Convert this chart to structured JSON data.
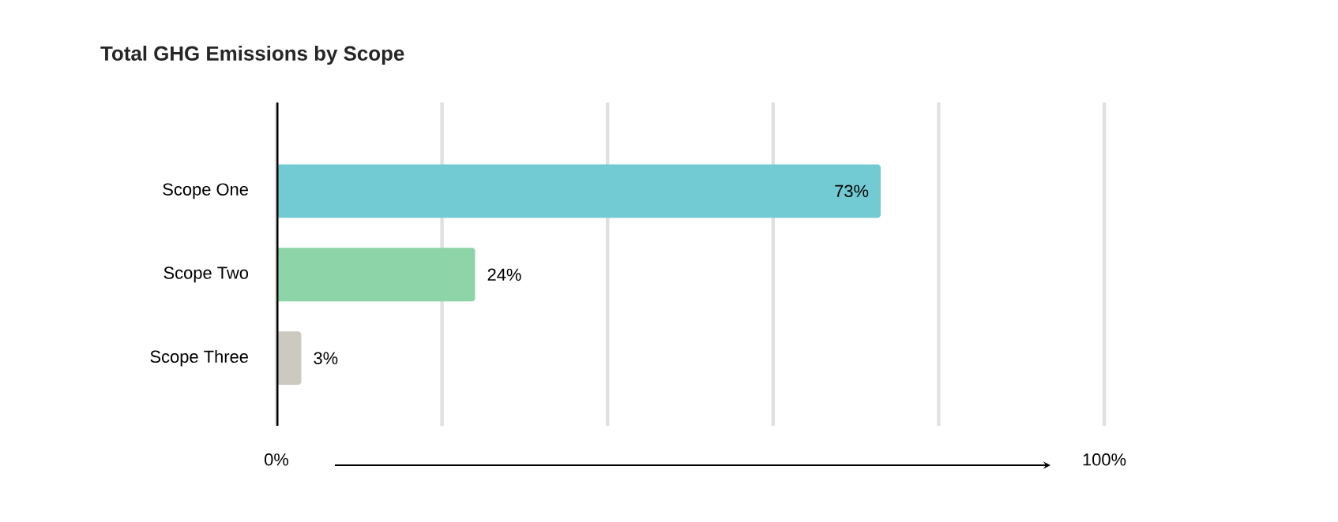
{
  "chart_data": {
    "type": "bar",
    "orientation": "horizontal",
    "title": "Total GHG Emissions by Scope",
    "categories": [
      "Scope One",
      "Scope Two",
      "Scope Three"
    ],
    "values": [
      73,
      24,
      3
    ],
    "colors": [
      "#72cbd3",
      "#8dd4a9",
      "#ccc9c1"
    ],
    "value_labels": [
      "73%",
      "24%",
      "3%"
    ],
    "xlim": [
      0,
      100
    ],
    "xticks": [
      {
        "value": 0,
        "label": "0%"
      },
      {
        "value": 20,
        "label": null
      },
      {
        "value": 40,
        "label": null
      },
      {
        "value": 60,
        "label": null
      },
      {
        "value": 80,
        "label": null
      },
      {
        "value": 100,
        "label": "100%"
      }
    ],
    "grid": "x"
  }
}
